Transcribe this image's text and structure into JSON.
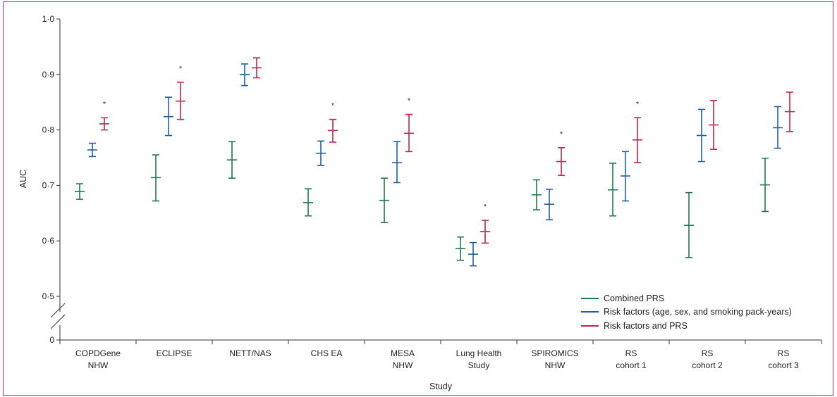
{
  "chart_data": {
    "type": "scatter",
    "title": "",
    "xlabel": "Study",
    "ylabel": "AUC",
    "ylim": [
      0.5,
      1.0
    ],
    "y_ticks": [
      "0·5",
      "0·6",
      "0·7",
      "0·8",
      "0·9",
      "1·0"
    ],
    "y_zero_label": "0",
    "y_axis_break": true,
    "grid": false,
    "legend_position": "bottom-right",
    "categories": [
      [
        "COPDGene",
        "NHW"
      ],
      [
        "ECLIPSE"
      ],
      [
        "NETT/NAS"
      ],
      [
        "CHS EA"
      ],
      [
        "MESA",
        "NHW"
      ],
      [
        "Lung Health",
        "Study"
      ],
      [
        "SPIROMICS",
        "NHW"
      ],
      [
        "RS",
        "cohort 1"
      ],
      [
        "RS",
        "cohort 2"
      ],
      [
        "RS",
        "cohort 3"
      ]
    ],
    "significance_marker": "*",
    "significant": [
      true,
      true,
      false,
      true,
      true,
      true,
      true,
      true,
      false,
      false
    ],
    "series": [
      {
        "name": "Combined PRS",
        "color": "#1e7a4a",
        "values": [
          0.689,
          0.714,
          0.746,
          0.669,
          0.673,
          0.586,
          0.683,
          0.692,
          0.628,
          0.701
        ],
        "lower": [
          0.675,
          0.672,
          0.713,
          0.645,
          0.633,
          0.565,
          0.656,
          0.645,
          0.57,
          0.653
        ],
        "upper": [
          0.703,
          0.755,
          0.779,
          0.694,
          0.713,
          0.607,
          0.71,
          0.74,
          0.687,
          0.749
        ]
      },
      {
        "name": "Risk factors (age, sex, and smoking pack-years)",
        "color": "#1f5fa6",
        "values": [
          0.764,
          0.824,
          0.9,
          0.758,
          0.741,
          0.576,
          0.666,
          0.717,
          0.79,
          0.804
        ],
        "lower": [
          0.752,
          0.79,
          0.88,
          0.736,
          0.705,
          0.555,
          0.638,
          0.672,
          0.743,
          0.767
        ],
        "upper": [
          0.776,
          0.859,
          0.919,
          0.78,
          0.779,
          0.597,
          0.693,
          0.761,
          0.837,
          0.842
        ]
      },
      {
        "name": "Risk factors and PRS",
        "color": "#c0244f",
        "values": [
          0.811,
          0.852,
          0.912,
          0.799,
          0.794,
          0.617,
          0.743,
          0.782,
          0.809,
          0.833
        ],
        "lower": [
          0.8,
          0.819,
          0.894,
          0.778,
          0.761,
          0.596,
          0.718,
          0.741,
          0.765,
          0.797
        ],
        "upper": [
          0.822,
          0.886,
          0.93,
          0.819,
          0.828,
          0.637,
          0.768,
          0.822,
          0.853,
          0.868
        ]
      }
    ]
  }
}
